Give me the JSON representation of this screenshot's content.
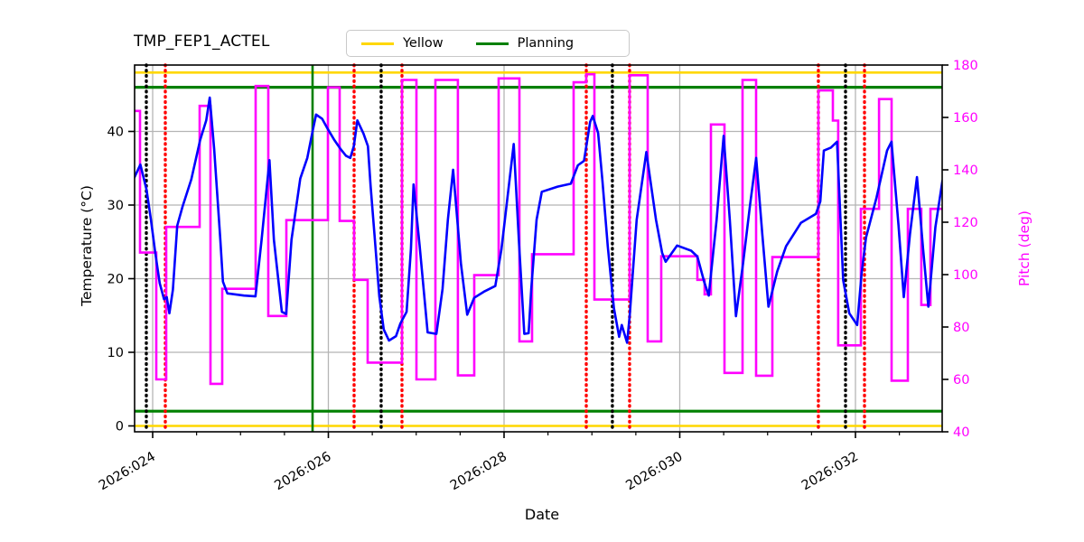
{
  "title": "TMP_FEP1_ACTEL",
  "legend": {
    "items": [
      {
        "label": "Yellow",
        "color": "#ffd700"
      },
      {
        "label": "Planning",
        "color": "#008000"
      }
    ]
  },
  "axes": {
    "xlabel": "Date",
    "ylabel_left": "Temperature (°C)",
    "ylabel_right": "Pitch (deg)",
    "x_tick_labels": [
      "2026:024",
      "2026:026",
      "2026:028",
      "2026:030",
      "2026:032"
    ],
    "x_tick_t": [
      0,
      2,
      4,
      6,
      8
    ],
    "x_minor_step": 0.5,
    "y_left_ticks": [
      0,
      10,
      20,
      30,
      40
    ],
    "y_right_ticks": [
      40,
      60,
      80,
      100,
      120,
      140,
      160,
      180
    ],
    "xlim": [
      -0.21,
      8.99
    ],
    "ylim_left": [
      -0.85,
      48.9
    ],
    "ylim_right": [
      40,
      180
    ],
    "grid": true,
    "grid_color": "#b5b5b5"
  },
  "chart_data": {
    "type": "line",
    "title": "TMP_FEP1_ACTEL",
    "xlabel": "Date",
    "x_unit": "days since 2026:024",
    "series": [
      {
        "name": "TMP_FEP1_ACTEL temperature",
        "color": "#0000ff",
        "axis": "left",
        "style": "line",
        "x": [
          -0.21,
          -0.14,
          -0.07,
          -0.02,
          0.03,
          0.08,
          0.13,
          0.16,
          0.19,
          0.23,
          0.28,
          0.34,
          0.44,
          0.54,
          0.61,
          0.65,
          0.7,
          0.77,
          0.8,
          0.85,
          1.04,
          1.17,
          1.24,
          1.33,
          1.38,
          1.47,
          1.52,
          1.58,
          1.68,
          1.76,
          1.82,
          1.86,
          1.93,
          1.99,
          2.07,
          2.14,
          2.2,
          2.25,
          2.29,
          2.33,
          2.4,
          2.45,
          2.48,
          2.53,
          2.58,
          2.63,
          2.69,
          2.77,
          2.82,
          2.89,
          2.94,
          2.97,
          3.04,
          3.13,
          3.23,
          3.3,
          3.36,
          3.42,
          3.51,
          3.58,
          3.66,
          3.78,
          3.9,
          3.97,
          4.11,
          4.17,
          4.23,
          4.28,
          4.31,
          4.37,
          4.43,
          4.61,
          4.76,
          4.84,
          4.91,
          4.98,
          5.01,
          5.07,
          5.12,
          5.18,
          5.25,
          5.31,
          5.34,
          5.4,
          5.43,
          5.51,
          5.62,
          5.73,
          5.8,
          5.84,
          5.97,
          6.13,
          6.2,
          6.28,
          6.33,
          6.42,
          6.5,
          6.57,
          6.64,
          6.72,
          6.8,
          6.87,
          6.94,
          7.01,
          7.11,
          7.21,
          7.38,
          7.55,
          7.6,
          7.64,
          7.72,
          7.79,
          7.86,
          7.93,
          8.02,
          8.07,
          8.12,
          8.24,
          8.36,
          8.41,
          8.49,
          8.55,
          8.62,
          8.7,
          8.77,
          8.83,
          8.91,
          8.99
        ],
        "y": [
          33.7,
          35.5,
          32.1,
          28.0,
          23.5,
          19.4,
          17.2,
          17.5,
          15.3,
          18.5,
          27.2,
          29.8,
          33.5,
          38.8,
          41.5,
          44.6,
          37.6,
          25.3,
          19.6,
          18.0,
          17.7,
          17.6,
          25.3,
          36.1,
          25.3,
          15.5,
          15.2,
          25.3,
          33.6,
          36.4,
          40.0,
          42.3,
          41.7,
          40.4,
          38.8,
          37.6,
          36.7,
          36.4,
          38.0,
          41.5,
          39.7,
          38.0,
          32.7,
          25.3,
          17.6,
          13.1,
          11.6,
          12.2,
          13.9,
          15.5,
          24.0,
          32.8,
          24.4,
          12.7,
          12.5,
          18.6,
          28.0,
          34.8,
          22.0,
          15.1,
          17.4,
          18.3,
          19.0,
          24.0,
          38.3,
          25.0,
          12.5,
          12.6,
          18.6,
          28.0,
          31.8,
          32.5,
          32.9,
          35.4,
          36.0,
          41.3,
          42.1,
          39.8,
          33.3,
          24.4,
          16.0,
          12.1,
          13.7,
          11.3,
          15.0,
          28.0,
          37.2,
          28.0,
          23.5,
          22.3,
          24.5,
          23.8,
          23.0,
          19.5,
          17.7,
          28.0,
          39.4,
          28.0,
          14.9,
          22.0,
          30.0,
          36.4,
          26.0,
          16.2,
          21.0,
          24.4,
          27.6,
          28.8,
          30.5,
          37.4,
          37.8,
          38.6,
          19.8,
          15.3,
          13.7,
          20.7,
          25.6,
          31.0,
          37.4,
          38.6,
          27.2,
          17.5,
          26.0,
          33.8,
          24.0,
          16.2,
          27.0,
          33.3
        ]
      },
      {
        "name": "Pitch",
        "color": "#ff00ff",
        "axis": "right",
        "style": "step",
        "segments": [
          [
            -0.216,
            -0.144,
            162.5
          ],
          [
            -0.144,
            0.041,
            108.4
          ],
          [
            0.041,
            0.154,
            60.0
          ],
          [
            0.154,
            0.535,
            118.2
          ],
          [
            0.535,
            0.658,
            164.4
          ],
          [
            0.658,
            0.792,
            58.3
          ],
          [
            0.792,
            1.172,
            94.6
          ],
          [
            1.172,
            1.316,
            172.0
          ],
          [
            1.316,
            1.522,
            84.2
          ],
          [
            1.522,
            1.995,
            120.8
          ],
          [
            1.995,
            2.129,
            171.5
          ],
          [
            2.129,
            2.293,
            120.5
          ],
          [
            2.293,
            2.447,
            98.0
          ],
          [
            2.447,
            2.838,
            66.4
          ],
          [
            2.838,
            3.003,
            174.3
          ],
          [
            3.003,
            3.219,
            60.0
          ],
          [
            3.219,
            3.475,
            174.3
          ],
          [
            3.475,
            3.661,
            61.5
          ],
          [
            3.661,
            3.938,
            99.8
          ],
          [
            3.938,
            4.175,
            174.9
          ],
          [
            4.175,
            4.319,
            74.5
          ],
          [
            4.319,
            4.792,
            107.8
          ],
          [
            4.792,
            4.936,
            173.4
          ],
          [
            4.936,
            5.028,
            176.5
          ],
          [
            5.028,
            5.429,
            90.5
          ],
          [
            5.429,
            5.635,
            176.1
          ],
          [
            5.635,
            5.789,
            74.5
          ],
          [
            5.789,
            6.2,
            107.0
          ],
          [
            6.2,
            6.283,
            98.0
          ],
          [
            6.283,
            6.355,
            92.5
          ],
          [
            6.355,
            6.509,
            157.3
          ],
          [
            6.509,
            6.715,
            62.5
          ],
          [
            6.715,
            6.869,
            174.3
          ],
          [
            6.869,
            7.054,
            61.4
          ],
          [
            7.054,
            7.578,
            106.7
          ],
          [
            7.578,
            7.743,
            170.3
          ],
          [
            7.743,
            7.804,
            158.8
          ],
          [
            7.804,
            8.062,
            73.0
          ],
          [
            8.062,
            8.268,
            125.1
          ],
          [
            8.268,
            8.411,
            167.0
          ],
          [
            8.411,
            8.596,
            59.5
          ],
          [
            8.596,
            8.75,
            125.1
          ],
          [
            8.75,
            8.853,
            88.4
          ],
          [
            8.853,
            8.99,
            125.1
          ]
        ]
      }
    ],
    "h_lines": [
      {
        "value": 48,
        "axis": "left",
        "color": "#ffd700",
        "label": "Yellow high"
      },
      {
        "value": 46,
        "axis": "left",
        "color": "#008000",
        "label": "Planning high"
      },
      {
        "value": 2,
        "axis": "left",
        "color": "#008000",
        "label": "Planning low"
      },
      {
        "value": 0,
        "axis": "left",
        "color": "#ffd700",
        "label": "Yellow low"
      }
    ],
    "v_lines": [
      {
        "t": 1.82,
        "color": "#008000",
        "style": "solid"
      },
      {
        "t": -0.072,
        "color": "#000000",
        "style": "dotted"
      },
      {
        "t": 2.601,
        "color": "#000000",
        "style": "dotted"
      },
      {
        "t": 5.233,
        "color": "#000000",
        "style": "dotted"
      },
      {
        "t": 7.887,
        "color": "#000000",
        "style": "dotted"
      },
      {
        "t": 0.144,
        "color": "#ff0000",
        "style": "dotted"
      },
      {
        "t": 2.293,
        "color": "#ff0000",
        "style": "dotted"
      },
      {
        "t": 2.838,
        "color": "#ff0000",
        "style": "dotted"
      },
      {
        "t": 4.936,
        "color": "#ff0000",
        "style": "dotted"
      },
      {
        "t": 5.429,
        "color": "#ff0000",
        "style": "dotted"
      },
      {
        "t": 7.578,
        "color": "#ff0000",
        "style": "dotted"
      },
      {
        "t": 8.103,
        "color": "#ff0000",
        "style": "dotted"
      }
    ]
  }
}
